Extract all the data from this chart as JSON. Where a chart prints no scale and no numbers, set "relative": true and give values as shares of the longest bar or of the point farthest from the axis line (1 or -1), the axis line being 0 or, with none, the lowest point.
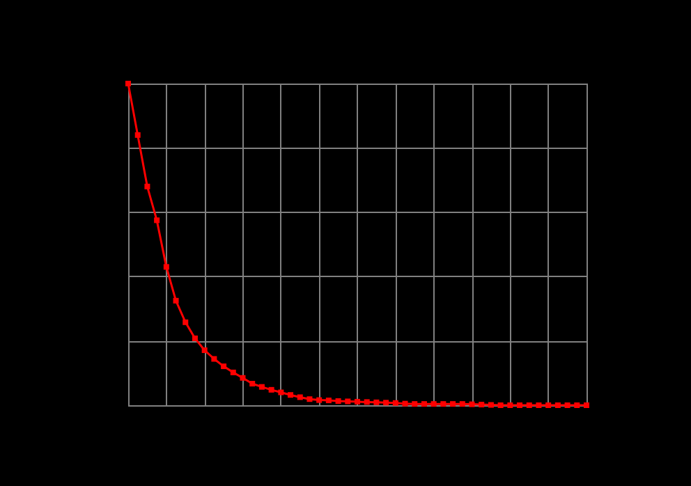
{
  "chart_data": {
    "type": "line",
    "relative": true,
    "grid": true,
    "marker": "square",
    "categories": [
      null,
      null,
      null,
      null,
      null,
      null,
      null,
      null,
      null,
      null,
      null,
      null,
      null,
      null,
      null,
      null,
      null,
      null,
      null,
      null,
      null,
      null,
      null,
      null,
      null,
      null,
      null,
      null,
      null,
      null,
      null,
      null,
      null,
      null,
      null,
      null,
      null,
      null,
      null,
      null,
      null,
      null,
      null,
      null,
      null,
      null,
      null,
      null,
      null
    ],
    "series": [
      {
        "color": "#ff0000",
        "values": [
          1.0,
          0.84,
          0.68,
          0.575,
          0.43,
          0.325,
          0.258,
          0.208,
          0.171,
          0.144,
          0.121,
          0.102,
          0.085,
          0.067,
          0.057,
          0.048,
          0.04,
          0.032,
          0.025,
          0.019,
          0.016,
          0.015,
          0.013,
          0.012,
          0.011,
          0.01,
          0.009,
          0.008,
          0.007,
          0.005,
          0.004,
          0.004,
          0.004,
          0.004,
          0.004,
          0.004,
          0.003,
          0.002,
          0.001,
          0,
          0,
          0,
          0,
          0,
          0,
          0,
          0,
          0,
          0
        ]
      }
    ]
  }
}
